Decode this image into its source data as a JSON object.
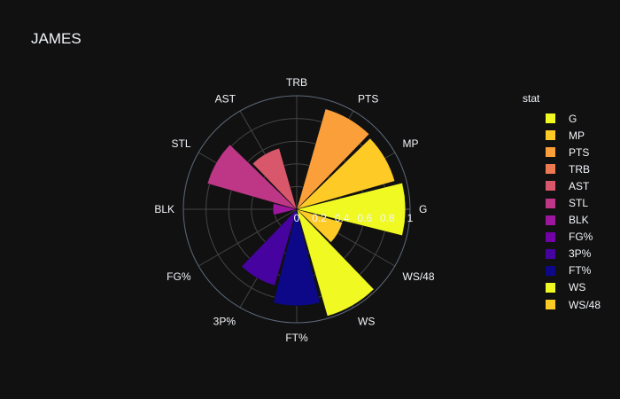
{
  "chart_data": {
    "type": "barpolar",
    "title": "JAMES",
    "legend_title": "stat",
    "legend_position": "right",
    "radial_range": [
      0,
      1
    ],
    "radial_ticks": [
      "0",
      "0.2",
      "0.4",
      "0.6",
      "0.8",
      "1"
    ],
    "grid": true,
    "categories": [
      "G",
      "MP",
      "PTS",
      "TRB",
      "AST",
      "STL",
      "BLK",
      "FG%",
      "3P%",
      "FT%",
      "WS",
      "WS/48"
    ],
    "series": [
      {
        "name": "G",
        "value": 0.96,
        "color": "#f0f921"
      },
      {
        "name": "MP",
        "value": 0.9,
        "color": "#fdca26"
      },
      {
        "name": "PTS",
        "value": 0.92,
        "color": "#fb9f3a"
      },
      {
        "name": "TRB",
        "value": 0.0,
        "color": "#ed7953"
      },
      {
        "name": "AST",
        "value": 0.56,
        "color": "#d8576b"
      },
      {
        "name": "STL",
        "value": 0.82,
        "color": "#bd3786"
      },
      {
        "name": "BLK",
        "value": 0.21,
        "color": "#9c179e"
      },
      {
        "name": "FG%",
        "value": 0.0,
        "color": "#7201a8"
      },
      {
        "name": "3P%",
        "value": 0.7,
        "color": "#46039f"
      },
      {
        "name": "FT%",
        "value": 0.85,
        "color": "#0d0887"
      },
      {
        "name": "WS",
        "value": 0.98,
        "color": "#f0f921"
      },
      {
        "name": "WS/48",
        "value": 0.42,
        "color": "#fdca26"
      }
    ]
  }
}
